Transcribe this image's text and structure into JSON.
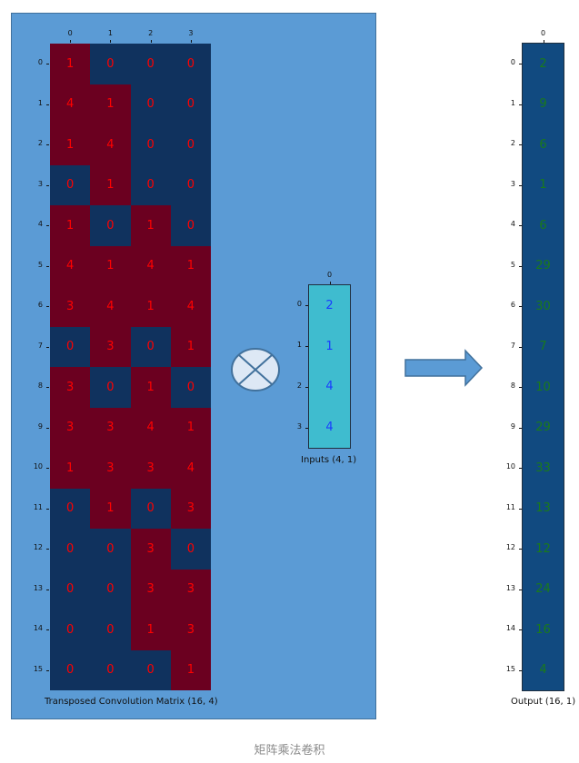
{
  "colors": {
    "high": "#6b0020",
    "low": "#10325e",
    "input_fill": "#3fbccf",
    "matrix_text": "#ff0000",
    "input_text": "#1a3cff",
    "output_text": "#1a7a1a",
    "output_fill": "#114a80",
    "panel": "#5b9bd5"
  },
  "matrix": {
    "caption": "Transposed Convolution Matrix (16, 4)",
    "col_labels": [
      "0",
      "1",
      "2",
      "3"
    ],
    "row_labels": [
      "0",
      "1",
      "2",
      "3",
      "4",
      "5",
      "6",
      "7",
      "8",
      "9",
      "10",
      "11",
      "12",
      "13",
      "14",
      "15"
    ],
    "values": [
      [
        1,
        0,
        0,
        0
      ],
      [
        4,
        1,
        0,
        0
      ],
      [
        1,
        4,
        0,
        0
      ],
      [
        0,
        1,
        0,
        0
      ],
      [
        1,
        0,
        1,
        0
      ],
      [
        4,
        1,
        4,
        1
      ],
      [
        3,
        4,
        1,
        4
      ],
      [
        0,
        3,
        0,
        1
      ],
      [
        3,
        0,
        1,
        0
      ],
      [
        3,
        3,
        4,
        1
      ],
      [
        1,
        3,
        3,
        4
      ],
      [
        0,
        1,
        0,
        3
      ],
      [
        0,
        0,
        3,
        0
      ],
      [
        0,
        0,
        3,
        3
      ],
      [
        0,
        0,
        1,
        3
      ],
      [
        0,
        0,
        0,
        1
      ]
    ]
  },
  "operator": {
    "icon": "circled-times-icon"
  },
  "inputs": {
    "caption": "Inputs (4, 1)",
    "col_labels": [
      "0"
    ],
    "row_labels": [
      "0",
      "1",
      "2",
      "3"
    ],
    "values": [
      2,
      1,
      4,
      4
    ]
  },
  "arrow": {
    "icon": "right-arrow-icon"
  },
  "output": {
    "caption": "Output (16, 1)",
    "col_labels": [
      "0"
    ],
    "row_labels": [
      "0",
      "1",
      "2",
      "3",
      "4",
      "5",
      "6",
      "7",
      "8",
      "9",
      "10",
      "11",
      "12",
      "13",
      "14",
      "15"
    ],
    "values": [
      2,
      9,
      6,
      1,
      6,
      29,
      30,
      7,
      10,
      29,
      33,
      13,
      12,
      24,
      16,
      4
    ]
  },
  "footer": "矩阵乘法卷积"
}
